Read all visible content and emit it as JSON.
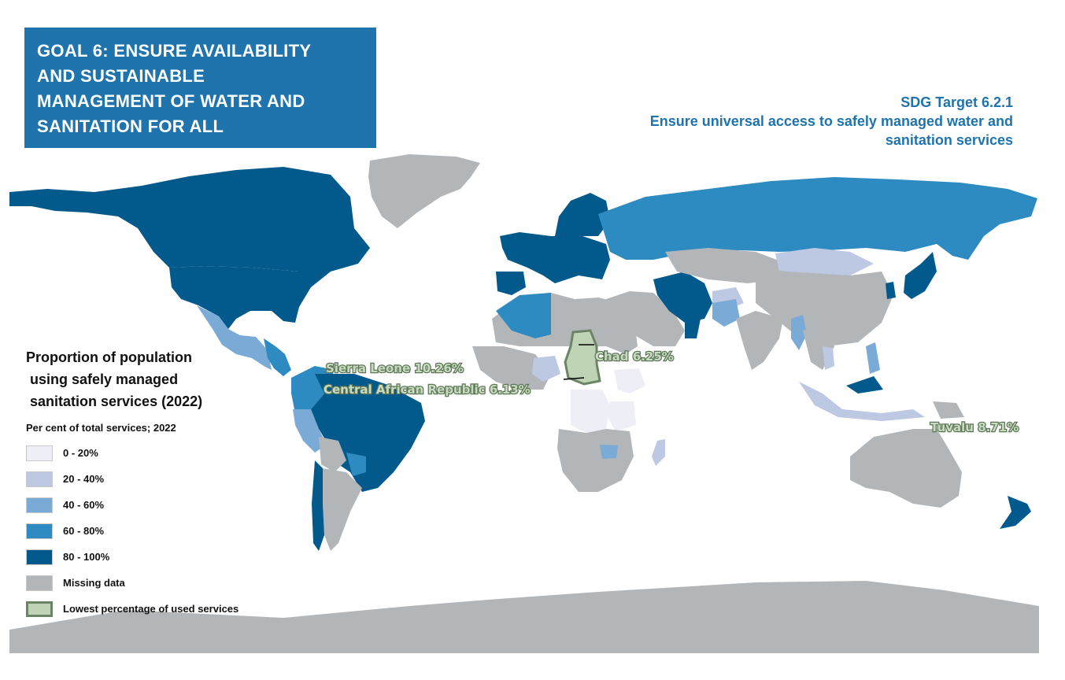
{
  "header": {
    "goal_lines": [
      "GOAL 6: ENSURE AVAILABILITY",
      "AND SUSTAINABLE",
      "MANAGEMENT OF WATER AND",
      "SANITATION FOR ALL"
    ],
    "target_lines": [
      "SDG Target 6.2.1",
      "Ensure universal access to safely managed water and",
      "sanitation services"
    ]
  },
  "legend": {
    "title_lines": [
      "Proportion of population",
      " using safely managed",
      " sanitation services (2022)"
    ],
    "subtitle": "Per cent of total services; 2022",
    "items": [
      {
        "label": "0 - 20%",
        "color": "#eeeef6"
      },
      {
        "label": "20 - 40%",
        "color": "#bdc8e2"
      },
      {
        "label": "40 - 60%",
        "color": "#7aabd6"
      },
      {
        "label": "60 - 80%",
        "color": "#2e8bc2"
      },
      {
        "label": "80 - 100%",
        "color": "#025a8c"
      },
      {
        "label": "Missing data",
        "color": "#b3b6b9"
      },
      {
        "label": "Lowest percentage of used services",
        "color": "#bed4b4",
        "border": "#6c8466"
      }
    ]
  },
  "callouts": {
    "chad": "Chad 6.25%",
    "sierra_leone": "Sierra Leone 10.26%",
    "car": "Central African Republic 6.13%",
    "tuvalu": "Tuvalu 8.71%"
  },
  "colors": {
    "title_box": "#1f74ad",
    "ocean": "#ffffff",
    "missing": "#b3b6b9",
    "lowest": "#bed4b4",
    "lowest_border": "#6c8466"
  }
}
